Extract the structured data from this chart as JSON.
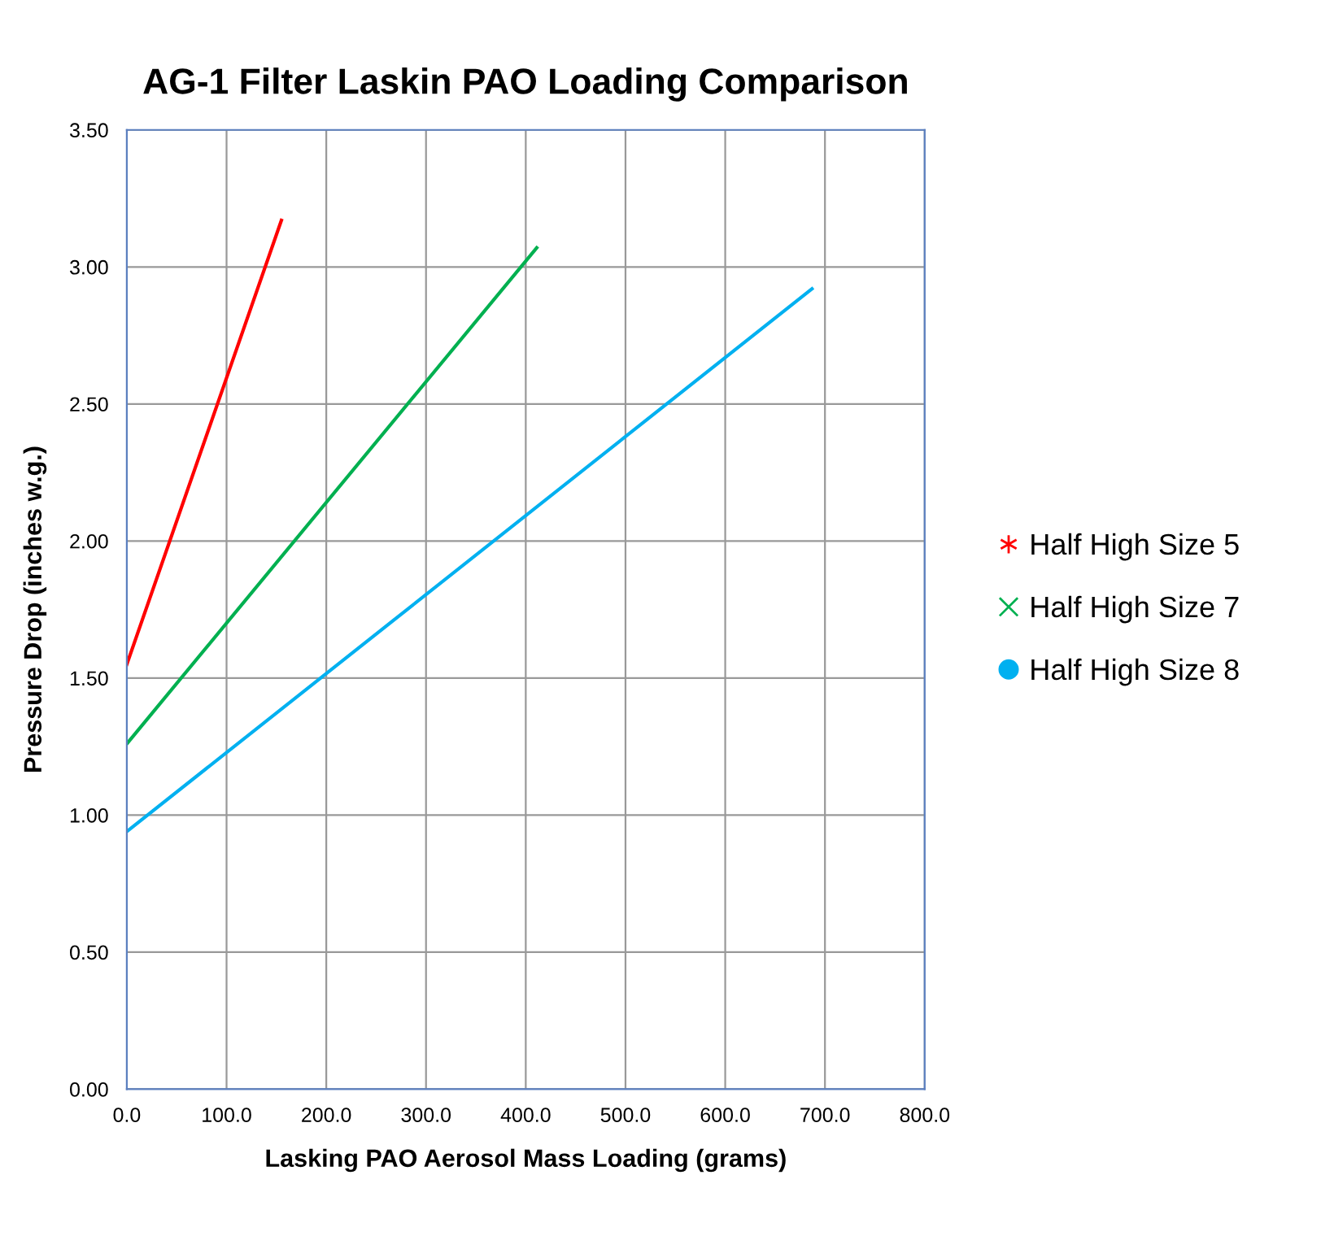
{
  "chart_data": {
    "type": "line",
    "title": "AG-1 Filter Laskin PAO Loading Comparison",
    "xlabel": "Lasking PAO Aerosol Mass Loading (grams)",
    "ylabel": "Pressure Drop (inches w.g.)",
    "series": [
      {
        "name": "Half High Size 5",
        "color": "#ff0000",
        "x": [
          0,
          155
        ],
        "values": [
          1.55,
          3.17
        ]
      },
      {
        "name": "Half High Size 7",
        "color": "#00b050",
        "x": [
          0,
          411
        ],
        "values": [
          1.26,
          3.07
        ]
      },
      {
        "name": "Half High Size 8",
        "color": "#00b0f0",
        "x": [
          0,
          687
        ],
        "values": [
          0.94,
          2.92
        ]
      }
    ],
    "xlim": [
      0,
      800
    ],
    "ylim": [
      0,
      3.5
    ],
    "xticks": [
      {
        "value": 0,
        "label": "0.0"
      },
      {
        "value": 100,
        "label": "100.0"
      },
      {
        "value": 200,
        "label": "200.0"
      },
      {
        "value": 300,
        "label": "300.0"
      },
      {
        "value": 400,
        "label": "400.0"
      },
      {
        "value": 500,
        "label": "500.0"
      },
      {
        "value": 600,
        "label": "600.0"
      },
      {
        "value": 700,
        "label": "700.0"
      },
      {
        "value": 800,
        "label": "800.0"
      }
    ],
    "yticks": [
      {
        "value": 0,
        "label": "0.00"
      },
      {
        "value": 0.5,
        "label": "0.50"
      },
      {
        "value": 1,
        "label": "1.00"
      },
      {
        "value": 1.5,
        "label": "1.50"
      },
      {
        "value": 2,
        "label": "2.00"
      },
      {
        "value": 2.5,
        "label": "2.50"
      },
      {
        "value": 3,
        "label": "3.00"
      },
      {
        "value": 3.5,
        "label": "3.50"
      }
    ],
    "grid": true,
    "legend": "right"
  }
}
